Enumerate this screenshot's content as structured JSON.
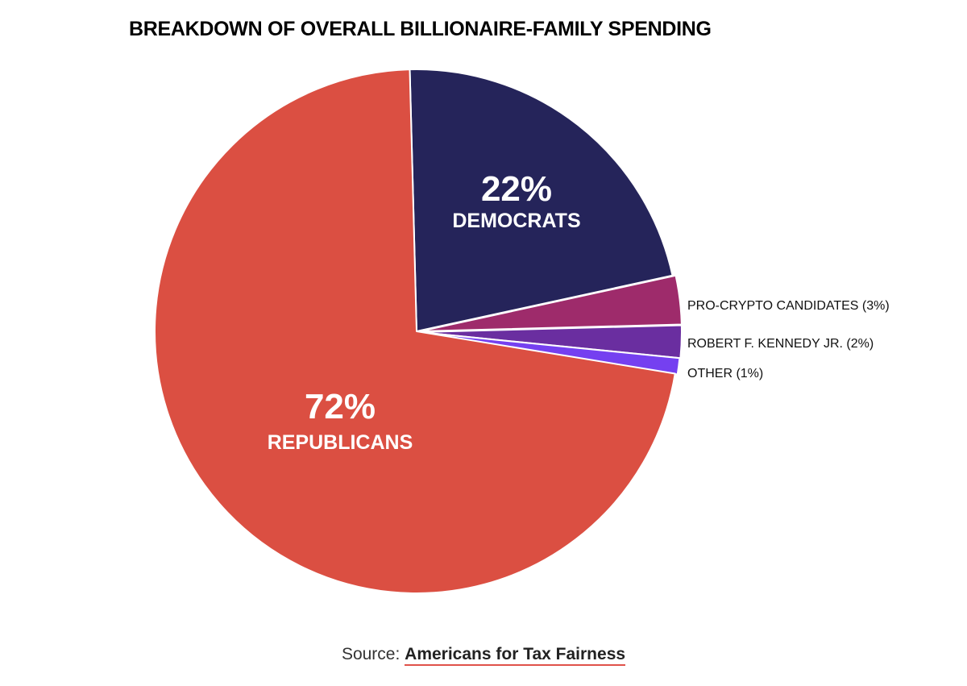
{
  "chart_data": {
    "type": "pie",
    "title": "BREAKDOWN OF OVERALL BILLIONAIRE-FAMILY SPENDING",
    "slices": [
      {
        "key": "democrats",
        "value": 22,
        "pct_label": "22%",
        "name_label": "DEMOCRATS",
        "color": "#25245a",
        "label_style": "inside"
      },
      {
        "key": "pro-crypto",
        "value": 3,
        "label": "PRO-CRYPTO CANDIDATES (3%)",
        "color": "#9e2b6b",
        "label_style": "outside"
      },
      {
        "key": "rfk",
        "value": 2,
        "label": "ROBERT F. KENNEDY JR. (2%)",
        "color": "#6a2ea0",
        "label_style": "outside"
      },
      {
        "key": "other",
        "value": 1,
        "label": "OTHER (1%)",
        "color": "#7540f0",
        "label_style": "outside"
      },
      {
        "key": "republicans",
        "value": 72,
        "pct_label": "72%",
        "name_label": "REPUBLICANS",
        "color": "#db4f42",
        "label_style": "inside"
      }
    ]
  },
  "source": {
    "prefix": "Source:",
    "link_text": "Americans for Tax Fairness"
  }
}
